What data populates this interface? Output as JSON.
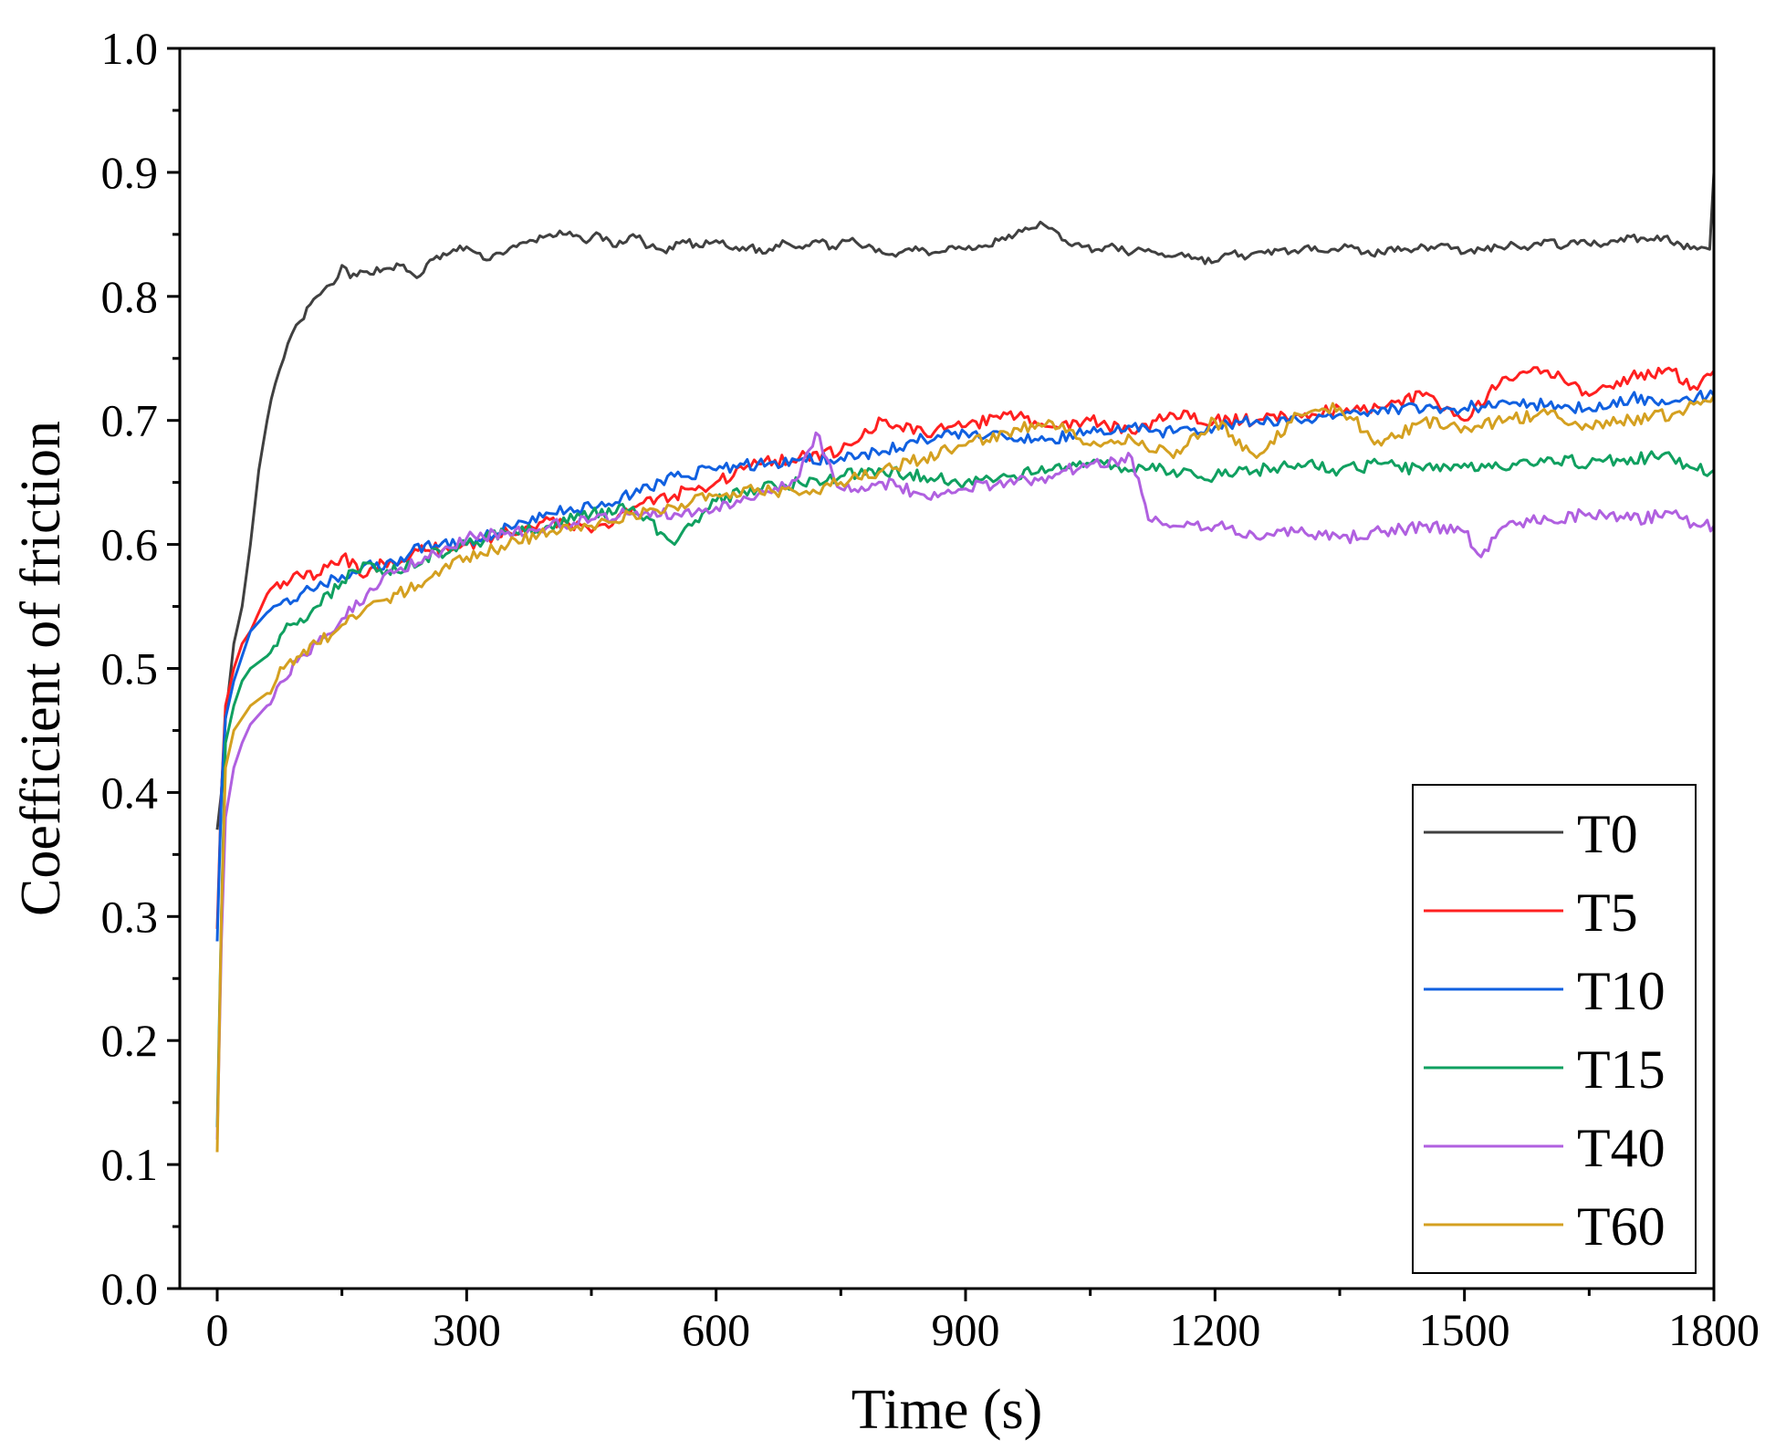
{
  "chart_data": {
    "type": "line",
    "xlabel": "Time (s)",
    "ylabel": "Coefficient of friction",
    "xlim": [
      -45,
      1800
    ],
    "ylim": [
      0.0,
      1.0
    ],
    "xticks": [
      0,
      300,
      600,
      900,
      1200,
      1500,
      1800
    ],
    "xtick_labels": [
      "0",
      "300",
      "600",
      "900",
      "1200",
      "1500",
      "1800"
    ],
    "yticks": [
      0.0,
      0.1,
      0.2,
      0.3,
      0.4,
      0.5,
      0.6,
      0.7,
      0.8,
      0.9,
      1.0
    ],
    "ytick_labels": [
      "0.0",
      "0.1",
      "0.2",
      "0.3",
      "0.4",
      "0.5",
      "0.6",
      "0.7",
      "0.8",
      "0.9",
      "1.0"
    ],
    "grid": false,
    "legend_position": "bottom-right",
    "series": [
      {
        "name": "T0",
        "color": "#404040",
        "x": [
          0,
          5,
          10,
          20,
          30,
          40,
          50,
          60,
          70,
          80,
          90,
          100,
          120,
          140,
          150,
          160,
          180,
          200,
          220,
          240,
          260,
          280,
          300,
          320,
          340,
          360,
          380,
          400,
          420,
          440,
          460,
          480,
          500,
          520,
          540,
          560,
          580,
          600,
          620,
          640,
          660,
          680,
          700,
          720,
          740,
          760,
          780,
          800,
          820,
          840,
          860,
          880,
          900,
          920,
          940,
          960,
          980,
          990,
          1000,
          1020,
          1040,
          1060,
          1080,
          1100,
          1120,
          1140,
          1160,
          1180,
          1200,
          1220,
          1240,
          1260,
          1280,
          1300,
          1320,
          1340,
          1360,
          1380,
          1400,
          1420,
          1440,
          1460,
          1480,
          1500,
          1520,
          1540,
          1560,
          1580,
          1600,
          1620,
          1640,
          1660,
          1680,
          1700,
          1720,
          1740,
          1760,
          1780,
          1795,
          1800
        ],
        "values": [
          0.37,
          0.4,
          0.46,
          0.52,
          0.55,
          0.6,
          0.66,
          0.7,
          0.73,
          0.75,
          0.77,
          0.78,
          0.8,
          0.81,
          0.825,
          0.815,
          0.82,
          0.822,
          0.825,
          0.815,
          0.83,
          0.835,
          0.84,
          0.83,
          0.835,
          0.84,
          0.845,
          0.85,
          0.85,
          0.845,
          0.85,
          0.84,
          0.85,
          0.84,
          0.835,
          0.845,
          0.84,
          0.845,
          0.838,
          0.84,
          0.835,
          0.845,
          0.84,
          0.845,
          0.84,
          0.845,
          0.84,
          0.835,
          0.835,
          0.84,
          0.835,
          0.84,
          0.838,
          0.84,
          0.845,
          0.85,
          0.855,
          0.86,
          0.855,
          0.845,
          0.84,
          0.838,
          0.84,
          0.835,
          0.838,
          0.832,
          0.835,
          0.83,
          0.828,
          0.835,
          0.832,
          0.835,
          0.838,
          0.835,
          0.84,
          0.838,
          0.84,
          0.835,
          0.835,
          0.84,
          0.838,
          0.84,
          0.842,
          0.835,
          0.838,
          0.84,
          0.842,
          0.84,
          0.845,
          0.84,
          0.845,
          0.842,
          0.845,
          0.848,
          0.845,
          0.848,
          0.842,
          0.838,
          0.838,
          0.9
        ]
      },
      {
        "name": "T5",
        "color": "#ff2020",
        "x": [
          0,
          5,
          10,
          20,
          30,
          40,
          60,
          80,
          100,
          120,
          150,
          180,
          200,
          250,
          300,
          350,
          400,
          450,
          500,
          550,
          600,
          650,
          700,
          750,
          800,
          850,
          900,
          950,
          1000,
          1050,
          1100,
          1150,
          1200,
          1250,
          1300,
          1350,
          1400,
          1450,
          1500,
          1550,
          1600,
          1650,
          1700,
          1750,
          1780,
          1800
        ],
        "values": [
          0.29,
          0.4,
          0.47,
          0.5,
          0.52,
          0.53,
          0.56,
          0.57,
          0.575,
          0.575,
          0.59,
          0.575,
          0.585,
          0.595,
          0.6,
          0.61,
          0.62,
          0.61,
          0.63,
          0.64,
          0.65,
          0.665,
          0.67,
          0.675,
          0.7,
          0.69,
          0.695,
          0.705,
          0.695,
          0.7,
          0.69,
          0.705,
          0.7,
          0.7,
          0.705,
          0.71,
          0.71,
          0.72,
          0.7,
          0.735,
          0.74,
          0.72,
          0.735,
          0.74,
          0.725,
          0.74
        ]
      },
      {
        "name": "T10",
        "color": "#1060e0",
        "x": [
          0,
          5,
          10,
          20,
          30,
          40,
          60,
          80,
          100,
          120,
          150,
          180,
          200,
          250,
          300,
          350,
          400,
          450,
          500,
          550,
          600,
          650,
          700,
          750,
          800,
          850,
          900,
          950,
          1000,
          1050,
          1100,
          1150,
          1200,
          1250,
          1300,
          1350,
          1400,
          1450,
          1500,
          1550,
          1600,
          1650,
          1700,
          1750,
          1780,
          1800
        ],
        "values": [
          0.28,
          0.4,
          0.46,
          0.49,
          0.51,
          0.53,
          0.545,
          0.555,
          0.56,
          0.565,
          0.575,
          0.585,
          0.58,
          0.6,
          0.6,
          0.615,
          0.625,
          0.63,
          0.64,
          0.655,
          0.66,
          0.665,
          0.668,
          0.67,
          0.675,
          0.685,
          0.69,
          0.685,
          0.685,
          0.69,
          0.695,
          0.69,
          0.695,
          0.7,
          0.7,
          0.705,
          0.71,
          0.708,
          0.71,
          0.715,
          0.712,
          0.71,
          0.718,
          0.715,
          0.72,
          0.72
        ]
      },
      {
        "name": "T15",
        "color": "#10a060",
        "x": [
          0,
          5,
          10,
          20,
          30,
          40,
          60,
          80,
          100,
          120,
          150,
          180,
          200,
          250,
          300,
          350,
          400,
          450,
          500,
          550,
          600,
          650,
          700,
          750,
          800,
          850,
          900,
          950,
          1000,
          1050,
          1100,
          1150,
          1200,
          1250,
          1300,
          1350,
          1400,
          1450,
          1500,
          1550,
          1600,
          1650,
          1700,
          1750,
          1780,
          1800
        ],
        "values": [
          0.13,
          0.3,
          0.44,
          0.47,
          0.49,
          0.5,
          0.51,
          0.53,
          0.54,
          0.55,
          0.57,
          0.585,
          0.575,
          0.59,
          0.6,
          0.61,
          0.615,
          0.625,
          0.63,
          0.6,
          0.635,
          0.645,
          0.65,
          0.655,
          0.66,
          0.655,
          0.65,
          0.655,
          0.66,
          0.665,
          0.66,
          0.66,
          0.655,
          0.66,
          0.665,
          0.66,
          0.665,
          0.66,
          0.665,
          0.66,
          0.67,
          0.665,
          0.67,
          0.67,
          0.66,
          0.66
        ]
      },
      {
        "name": "T40",
        "color": "#b060e0",
        "x": [
          0,
          5,
          10,
          20,
          30,
          40,
          60,
          80,
          100,
          120,
          150,
          180,
          200,
          250,
          300,
          350,
          400,
          450,
          500,
          550,
          600,
          650,
          700,
          720,
          750,
          800,
          850,
          900,
          950,
          1000,
          1050,
          1100,
          1120,
          1150,
          1200,
          1250,
          1300,
          1350,
          1400,
          1450,
          1500,
          1520,
          1550,
          1600,
          1650,
          1700,
          1750,
          1780,
          1800
        ],
        "values": [
          0.12,
          0.28,
          0.38,
          0.42,
          0.44,
          0.455,
          0.47,
          0.49,
          0.51,
          0.52,
          0.54,
          0.56,
          0.575,
          0.59,
          0.605,
          0.61,
          0.615,
          0.62,
          0.625,
          0.625,
          0.63,
          0.64,
          0.655,
          0.69,
          0.645,
          0.65,
          0.64,
          0.645,
          0.65,
          0.655,
          0.665,
          0.67,
          0.62,
          0.615,
          0.615,
          0.605,
          0.61,
          0.605,
          0.61,
          0.615,
          0.61,
          0.59,
          0.615,
          0.62,
          0.625,
          0.62,
          0.625,
          0.615,
          0.615
        ]
      },
      {
        "name": "T60",
        "color": "#d4a020",
        "x": [
          0,
          5,
          10,
          20,
          30,
          40,
          60,
          80,
          100,
          120,
          150,
          180,
          200,
          250,
          300,
          350,
          400,
          450,
          500,
          550,
          600,
          650,
          700,
          750,
          800,
          850,
          900,
          950,
          1000,
          1050,
          1100,
          1150,
          1200,
          1250,
          1300,
          1350,
          1400,
          1450,
          1500,
          1550,
          1600,
          1650,
          1700,
          1750,
          1780,
          1800
        ],
        "values": [
          0.11,
          0.3,
          0.42,
          0.45,
          0.46,
          0.47,
          0.48,
          0.5,
          0.51,
          0.52,
          0.535,
          0.55,
          0.555,
          0.57,
          0.59,
          0.6,
          0.61,
          0.615,
          0.625,
          0.63,
          0.64,
          0.645,
          0.64,
          0.65,
          0.66,
          0.67,
          0.68,
          0.69,
          0.7,
          0.68,
          0.685,
          0.67,
          0.7,
          0.67,
          0.705,
          0.71,
          0.68,
          0.7,
          0.695,
          0.7,
          0.705,
          0.695,
          0.7,
          0.705,
          0.715,
          0.72
        ]
      }
    ]
  }
}
